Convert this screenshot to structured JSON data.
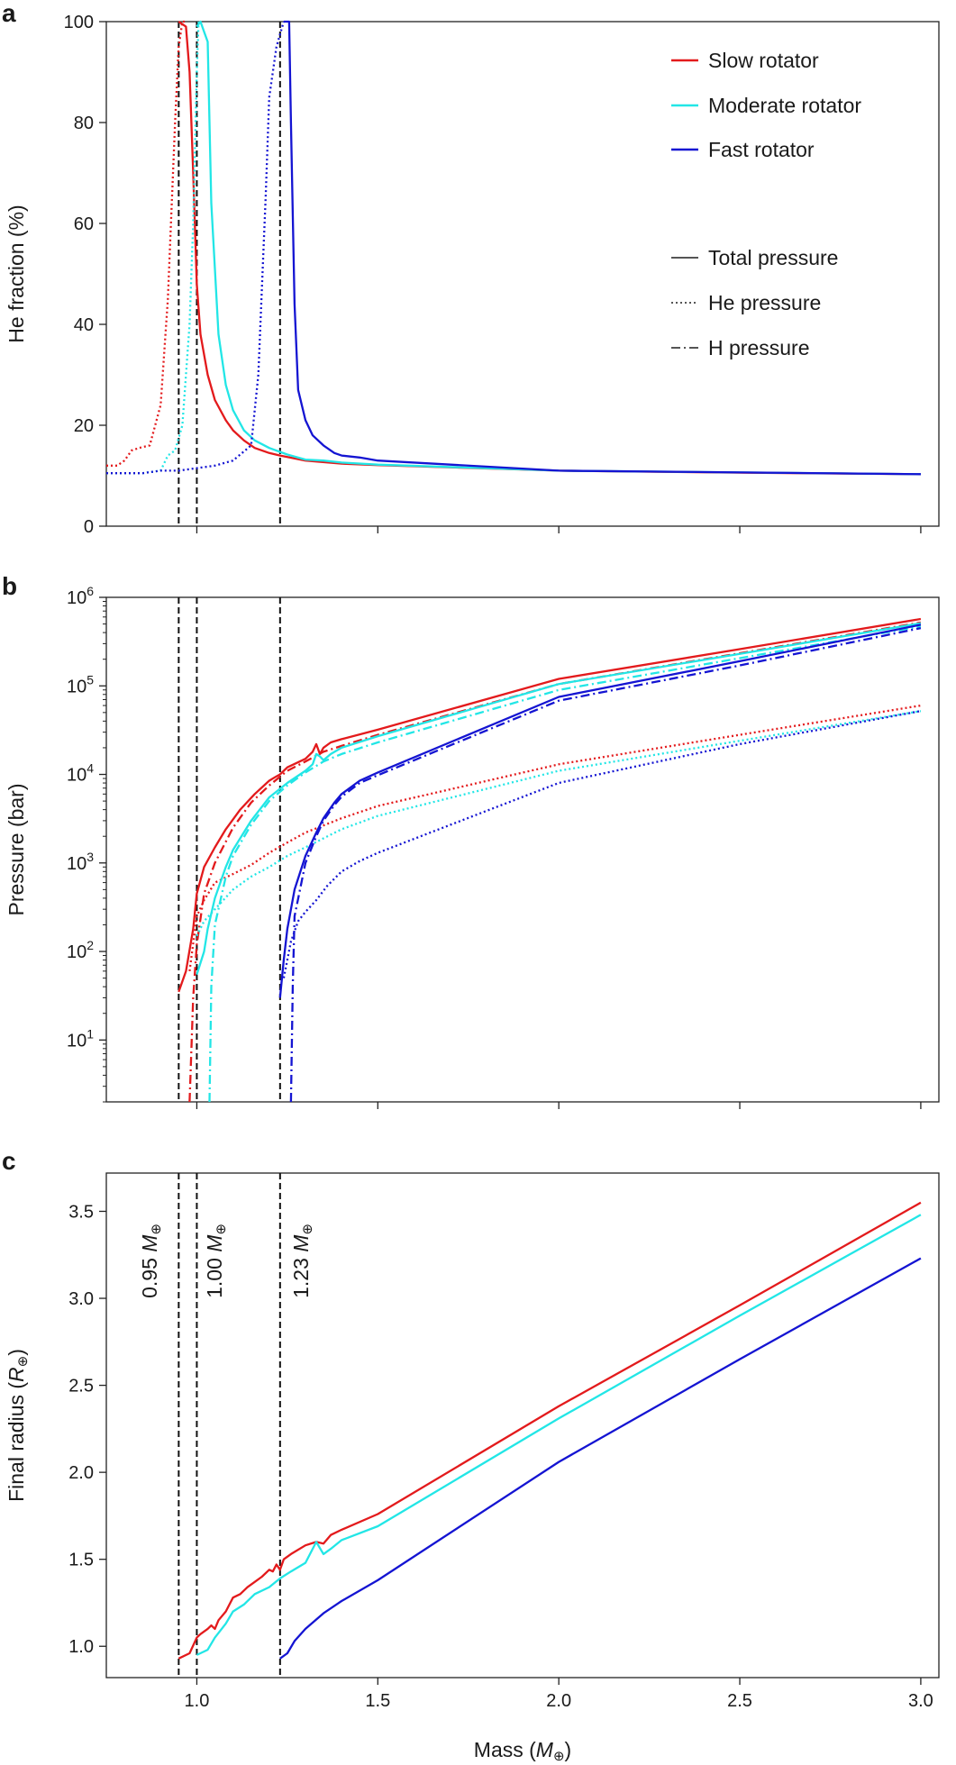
{
  "figure": {
    "x_axis_label": "Mass (M⊕)",
    "x_ticks": [
      "1.0",
      "1.5",
      "2.0",
      "2.5",
      "3.0"
    ],
    "colors": {
      "slow": "#e31a1c",
      "moderate": "#22e6e6",
      "fast": "#1414d2",
      "neutral": "#555555",
      "vline": "#111111"
    },
    "legend_series": [
      {
        "key": "slow",
        "label": "Slow rotator"
      },
      {
        "key": "moderate",
        "label": "Moderate rotator"
      },
      {
        "key": "fast",
        "label": "Fast rotator"
      }
    ],
    "legend_styles": [
      {
        "key": "total",
        "label": "Total pressure"
      },
      {
        "key": "he",
        "label": "He pressure"
      },
      {
        "key": "h",
        "label": "H pressure"
      }
    ],
    "vline_labels": [
      "0.95 M⊕",
      "1.00 M⊕",
      "1.23 M⊕"
    ]
  },
  "chart_data": [
    {
      "panel": "a",
      "type": "line",
      "xlabel": "",
      "ylabel": "He fraction (%)",
      "xlim": [
        0.75,
        3.05
      ],
      "ylim": [
        0,
        100
      ],
      "yticks": [
        0,
        20,
        40,
        60,
        80,
        100
      ],
      "vlines": [
        0.95,
        1.0,
        1.23
      ],
      "series": [
        {
          "name": "Slow rotator",
          "color_key": "slow",
          "style": "solid",
          "x": [
            0.95,
            0.97,
            0.98,
            0.99,
            1.0,
            1.01,
            1.03,
            1.05,
            1.08,
            1.1,
            1.13,
            1.16,
            1.2,
            1.23,
            1.3,
            1.4,
            1.5,
            2.0,
            2.5,
            3.0
          ],
          "y": [
            100,
            99,
            90,
            70,
            48,
            38,
            30,
            25,
            21,
            19,
            17,
            15.5,
            14.5,
            14,
            13,
            12.4,
            12.1,
            11,
            10.6,
            10.3
          ]
        },
        {
          "name": "Moderate rotator",
          "color_key": "moderate",
          "style": "solid",
          "x": [
            1.0,
            1.01,
            1.02,
            1.03,
            1.04,
            1.06,
            1.08,
            1.1,
            1.13,
            1.16,
            1.2,
            1.25,
            1.3,
            1.35,
            1.4,
            1.5,
            2.0,
            3.0
          ],
          "y": [
            99,
            100,
            98,
            96,
            64,
            38,
            28,
            23,
            19,
            17,
            15.5,
            14.2,
            13.2,
            13,
            12.6,
            12.2,
            11,
            10.3
          ]
        },
        {
          "name": "Fast rotator",
          "color_key": "fast",
          "style": "solid",
          "x": [
            1.24,
            1.255,
            1.26,
            1.27,
            1.28,
            1.3,
            1.32,
            1.35,
            1.38,
            1.4,
            1.45,
            1.5,
            2.0,
            3.0
          ],
          "y": [
            100,
            100,
            80,
            44,
            27,
            21,
            18,
            16,
            14.5,
            14,
            13.6,
            13,
            11,
            10.3
          ]
        },
        {
          "name": "Slow rotator He",
          "color_key": "slow",
          "style": "dotted",
          "x": [
            0.75,
            0.78,
            0.8,
            0.82,
            0.84,
            0.87,
            0.9,
            0.92,
            0.94,
            0.95,
            0.96,
            0.97
          ],
          "y": [
            12,
            12,
            13,
            15,
            15.5,
            16,
            24,
            45,
            80,
            95,
            100,
            100
          ]
        },
        {
          "name": "Moderate rotator He",
          "color_key": "moderate",
          "style": "dotted",
          "x": [
            0.75,
            0.8,
            0.85,
            0.9,
            0.92,
            0.94,
            0.96,
            0.98,
            0.99,
            1.0,
            1.005
          ],
          "y": [
            10.5,
            10.5,
            10.5,
            11,
            14,
            15,
            20,
            40,
            60,
            90,
            100
          ]
        },
        {
          "name": "Fast rotator He",
          "color_key": "fast",
          "style": "dotted",
          "x": [
            0.75,
            0.85,
            0.9,
            0.95,
            1.0,
            1.05,
            1.1,
            1.15,
            1.17,
            1.19,
            1.2,
            1.21,
            1.22,
            1.24
          ],
          "y": [
            10.5,
            10.5,
            11,
            11,
            11.5,
            12,
            13,
            16,
            30,
            65,
            85,
            90,
            95,
            100
          ]
        }
      ]
    },
    {
      "panel": "b",
      "type": "line",
      "xlabel": "",
      "ylabel": "Pressure (bar)",
      "xlim": [
        0.75,
        3.05
      ],
      "ylim": [
        2,
        1000000
      ],
      "yscale": "log",
      "yticks": [
        10,
        100,
        1000,
        10000,
        100000,
        1000000
      ],
      "ytick_exponents": [
        "1",
        "2",
        "3",
        "4",
        "5",
        "6"
      ],
      "vlines": [
        0.95,
        1.0,
        1.23
      ],
      "series": [
        {
          "name": "Slow total",
          "color_key": "slow",
          "style": "solid",
          "x": [
            0.95,
            0.97,
            0.99,
            1.0,
            1.02,
            1.05,
            1.08,
            1.12,
            1.16,
            1.2,
            1.22,
            1.23,
            1.25,
            1.3,
            1.32,
            1.33,
            1.34,
            1.35,
            1.37,
            1.4,
            1.5,
            2.0,
            2.5,
            3.0
          ],
          "y": [
            35,
            60,
            180,
            450,
            900,
            1500,
            2400,
            4000,
            6000,
            8500,
            9500,
            10000,
            12000,
            15000,
            18000,
            22000,
            17000,
            20000,
            23000,
            25000,
            32000,
            120000,
            260000,
            570000
          ]
        },
        {
          "name": "Slow H",
          "color_key": "slow",
          "style": "dashdot",
          "x": [
            0.98,
            0.99,
            1.0,
            1.02,
            1.05,
            1.1,
            1.15,
            1.2,
            1.25,
            1.3,
            1.35,
            1.4,
            1.5,
            2.0,
            3.0
          ],
          "y": [
            2,
            30,
            120,
            450,
            1000,
            2500,
            4800,
            7500,
            11000,
            14000,
            18000,
            21000,
            28000,
            105000,
            520000
          ]
        },
        {
          "name": "Slow He",
          "color_key": "slow",
          "style": "dotted",
          "x": [
            0.98,
            1.0,
            1.02,
            1.05,
            1.1,
            1.15,
            1.2,
            1.25,
            1.3,
            1.4,
            1.5,
            2.0,
            2.5,
            3.0
          ],
          "y": [
            60,
            250,
            380,
            600,
            750,
            950,
            1300,
            1700,
            2200,
            3200,
            4400,
            13000,
            28000,
            60000
          ]
        },
        {
          "name": "Moderate total",
          "color_key": "moderate",
          "style": "solid",
          "x": [
            1.0,
            1.02,
            1.03,
            1.05,
            1.08,
            1.1,
            1.15,
            1.2,
            1.25,
            1.3,
            1.32,
            1.33,
            1.34,
            1.35,
            1.37,
            1.4,
            1.5,
            2.0,
            2.5,
            3.0
          ],
          "y": [
            55,
            100,
            180,
            400,
            900,
            1400,
            3000,
            5500,
            8000,
            11000,
            13000,
            17000,
            16000,
            14500,
            17000,
            20000,
            27000,
            105000,
            230000,
            510000
          ]
        },
        {
          "name": "Moderate H",
          "color_key": "moderate",
          "style": "dashdot",
          "x": [
            1.035,
            1.04,
            1.05,
            1.08,
            1.1,
            1.15,
            1.2,
            1.25,
            1.3,
            1.35,
            1.4,
            1.5,
            2.0,
            3.0
          ],
          "y": [
            2,
            40,
            200,
            700,
            1200,
            2700,
            5000,
            7500,
            10500,
            14000,
            17000,
            23000,
            90000,
            470000
          ]
        },
        {
          "name": "Moderate He",
          "color_key": "moderate",
          "style": "dotted",
          "x": [
            1.0,
            1.02,
            1.05,
            1.1,
            1.15,
            1.2,
            1.25,
            1.3,
            1.4,
            1.5,
            2.0,
            2.5,
            3.0
          ],
          "y": [
            150,
            220,
            300,
            500,
            700,
            900,
            1200,
            1500,
            2400,
            3400,
            11000,
            24000,
            52000
          ]
        },
        {
          "name": "Fast total",
          "color_key": "fast",
          "style": "solid",
          "x": [
            1.23,
            1.24,
            1.25,
            1.27,
            1.3,
            1.33,
            1.35,
            1.38,
            1.4,
            1.45,
            1.5,
            2.0,
            2.5,
            3.0
          ],
          "y": [
            30,
            80,
            180,
            500,
            1200,
            2200,
            3200,
            4800,
            6000,
            8500,
            10500,
            75000,
            190000,
            490000
          ]
        },
        {
          "name": "Fast H",
          "color_key": "fast",
          "style": "dashdot",
          "x": [
            1.26,
            1.265,
            1.27,
            1.3,
            1.33,
            1.35,
            1.38,
            1.4,
            1.45,
            1.5,
            2.0,
            2.5,
            3.0
          ],
          "y": [
            2,
            40,
            250,
            1000,
            2000,
            3000,
            4500,
            5600,
            8000,
            9800,
            68000,
            170000,
            450000
          ]
        },
        {
          "name": "Fast He",
          "color_key": "fast",
          "style": "dotted",
          "x": [
            1.24,
            1.26,
            1.28,
            1.3,
            1.33,
            1.36,
            1.4,
            1.45,
            1.5,
            2.0,
            2.5,
            3.0
          ],
          "y": [
            50,
            130,
            220,
            280,
            380,
            550,
            800,
            1050,
            1300,
            8000,
            22000,
            52000
          ]
        }
      ]
    },
    {
      "panel": "c",
      "type": "line",
      "xlabel": "Mass (M⊕)",
      "ylabel": "Final radius (R⊕)",
      "xlim": [
        0.75,
        3.05
      ],
      "ylim": [
        0.82,
        3.72
      ],
      "yticks": [
        1.0,
        1.5,
        2.0,
        2.5,
        3.0,
        3.5
      ],
      "ytick_labels": [
        "1.0",
        "1.5",
        "2.0",
        "2.5",
        "3.0",
        "3.5"
      ],
      "vlines": [
        0.95,
        1.0,
        1.23
      ],
      "series": [
        {
          "name": "Slow rotator",
          "color_key": "slow",
          "style": "solid",
          "x": [
            0.95,
            0.98,
            1.0,
            1.01,
            1.03,
            1.04,
            1.05,
            1.06,
            1.08,
            1.1,
            1.12,
            1.14,
            1.16,
            1.18,
            1.2,
            1.21,
            1.22,
            1.23,
            1.24,
            1.26,
            1.3,
            1.33,
            1.35,
            1.37,
            1.4,
            1.5,
            2.0,
            2.5,
            3.0
          ],
          "y": [
            0.93,
            0.96,
            1.05,
            1.07,
            1.1,
            1.12,
            1.1,
            1.15,
            1.2,
            1.28,
            1.3,
            1.34,
            1.37,
            1.4,
            1.44,
            1.43,
            1.47,
            1.44,
            1.5,
            1.53,
            1.58,
            1.6,
            1.59,
            1.64,
            1.67,
            1.76,
            2.38,
            2.96,
            3.55
          ]
        },
        {
          "name": "Moderate rotator",
          "color_key": "moderate",
          "style": "solid",
          "x": [
            1.0,
            1.03,
            1.05,
            1.08,
            1.1,
            1.13,
            1.16,
            1.2,
            1.23,
            1.26,
            1.3,
            1.33,
            1.35,
            1.37,
            1.4,
            1.5,
            2.0,
            2.5,
            3.0
          ],
          "y": [
            0.95,
            0.98,
            1.05,
            1.13,
            1.2,
            1.24,
            1.3,
            1.34,
            1.39,
            1.43,
            1.48,
            1.6,
            1.53,
            1.56,
            1.61,
            1.69,
            2.31,
            2.9,
            3.48
          ]
        },
        {
          "name": "Fast rotator",
          "color_key": "fast",
          "style": "solid",
          "x": [
            1.23,
            1.25,
            1.27,
            1.3,
            1.35,
            1.4,
            1.5,
            2.0,
            2.5,
            3.0
          ],
          "y": [
            0.93,
            0.96,
            1.03,
            1.1,
            1.19,
            1.26,
            1.38,
            2.06,
            2.65,
            3.23
          ]
        }
      ]
    }
  ]
}
